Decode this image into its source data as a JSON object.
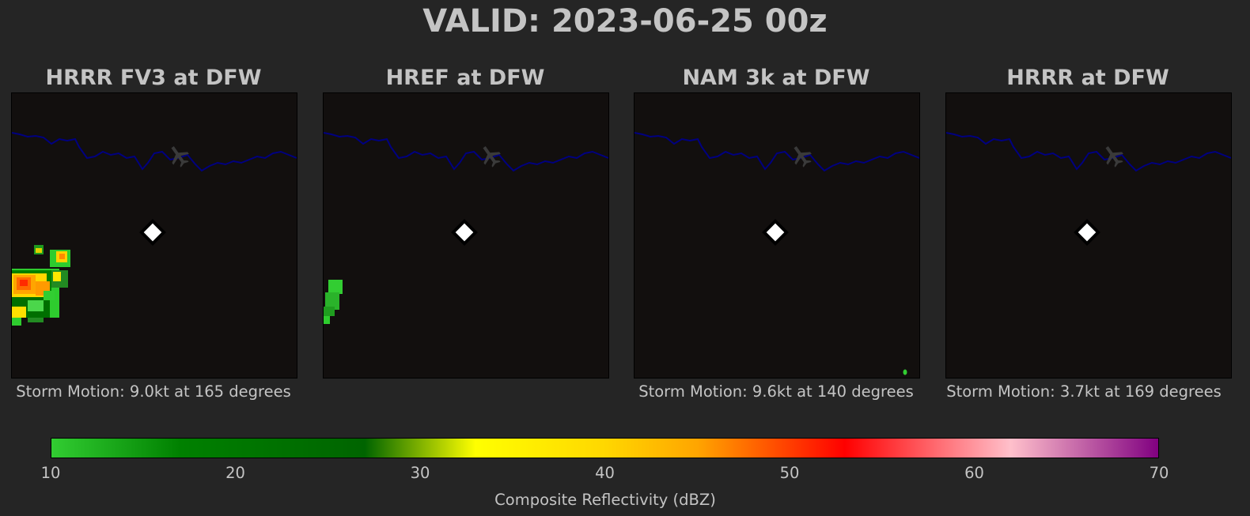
{
  "title": "VALID: 2023-06-25 00z",
  "panels": [
    {
      "model": "HRRR FV3 at DFW",
      "storm_motion": "Storm Motion: 9.0kt at 165 degrees"
    },
    {
      "model": "HREF at DFW",
      "storm_motion": ""
    },
    {
      "model": "NAM 3k at DFW",
      "storm_motion": "Storm Motion: 9.6kt at 140 degrees"
    },
    {
      "model": "HRRR at DFW",
      "storm_motion": "Storm Motion: 3.7kt at 169 degrees"
    }
  ],
  "map": {
    "background_color": "#120f0e",
    "boundary_color": "#000080",
    "station_marker": "white-diamond",
    "airport_icon": "airplane-icon"
  },
  "colorbar": {
    "label": "Composite Reflectivity (dBZ)",
    "min": 10,
    "max": 70,
    "ticks": [
      "10",
      "20",
      "30",
      "40",
      "50",
      "60",
      "70"
    ],
    "stops": [
      {
        "value": 10,
        "color": "#32cd32"
      },
      {
        "value": 17,
        "color": "#008000"
      },
      {
        "value": 27,
        "color": "#006400"
      },
      {
        "value": 33,
        "color": "#ffff00"
      },
      {
        "value": 40,
        "color": "#ffd700"
      },
      {
        "value": 45,
        "color": "#ffa500"
      },
      {
        "value": 53,
        "color": "#ff0000"
      },
      {
        "value": 62,
        "color": "#ffc0cb"
      },
      {
        "value": 70,
        "color": "#800080"
      }
    ]
  }
}
